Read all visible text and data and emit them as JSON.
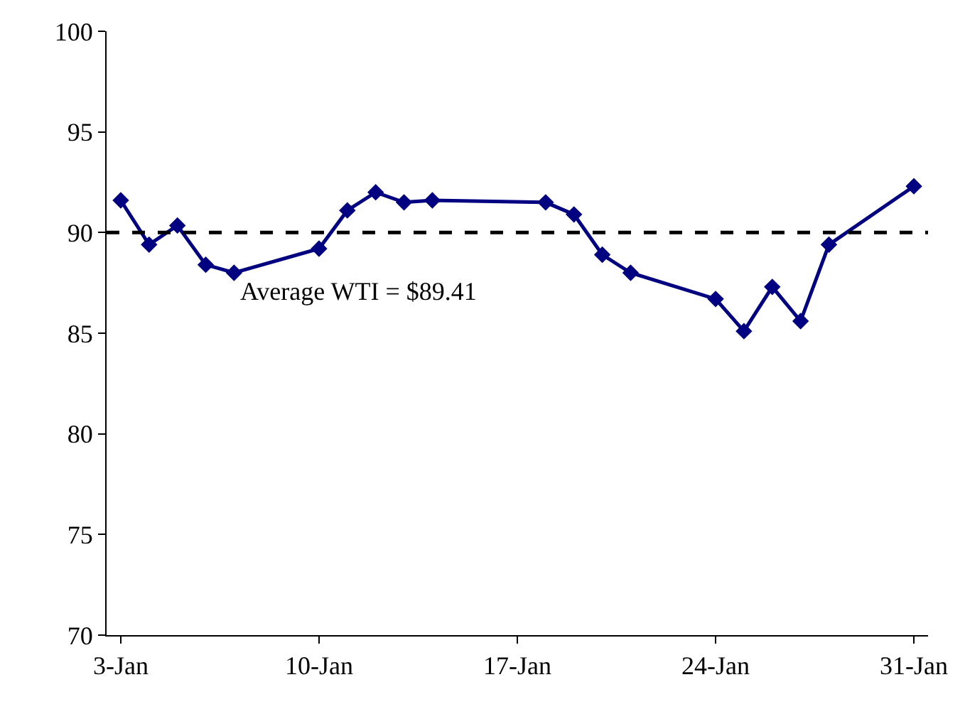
{
  "chart_data": {
    "type": "line",
    "x": [
      "--01-03",
      "--01-04",
      "--01-05",
      "--01-06",
      "--01-07",
      "--01-10",
      "--01-11",
      "--01-12",
      "--01-13",
      "--01-14",
      "--01-18",
      "--01-19",
      "--01-20",
      "--01-21",
      "--01-24",
      "--01-25",
      "--01-26",
      "--01-27",
      "--01-28",
      "--01-31"
    ],
    "series": [
      {
        "color": "#000080",
        "values": [
          91.6,
          89.4,
          90.35,
          88.4,
          88.0,
          89.2,
          91.1,
          92.0,
          91.5,
          91.6,
          91.5,
          90.9,
          88.9,
          88.0,
          86.7,
          85.1,
          87.3,
          85.6,
          89.4,
          92.3
        ]
      }
    ],
    "xlim": [
      "--01-02T12:00",
      "--01-31T12:00"
    ],
    "xticks": [
      {
        "value": "--01-03",
        "label": "3-Jan"
      },
      {
        "value": "--01-10",
        "label": "10-Jan"
      },
      {
        "value": "--01-17",
        "label": "17-Jan"
      },
      {
        "value": "--01-24",
        "label": "24-Jan"
      },
      {
        "value": "--01-31",
        "label": "31-Jan"
      }
    ],
    "ylim": [
      70,
      100
    ],
    "yticks": [
      70,
      75,
      80,
      85,
      90,
      95,
      100
    ],
    "ref_lines": [
      {
        "axis": "y",
        "value": 90,
        "color": "#000000",
        "line_style": "dashed"
      }
    ],
    "annotations": [
      "Average WTI = $89.41"
    ],
    "marker": "diamond",
    "line_style": "solid"
  }
}
